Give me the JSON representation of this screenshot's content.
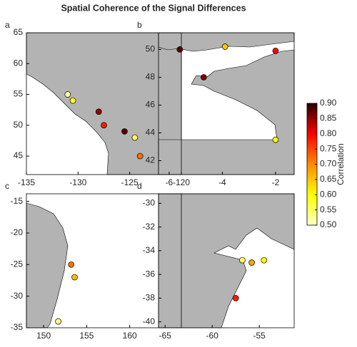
{
  "title": "Spatial Coherence of the Signal Differences",
  "chart_data": [
    {
      "type": "scatter",
      "label": "a",
      "xlim": [
        -135,
        -120
      ],
      "ylim": [
        42,
        65
      ],
      "xticks": [
        -135,
        -130,
        -125,
        -120
      ],
      "yticks": [
        45,
        50,
        55,
        60,
        65
      ],
      "x": [
        -131,
        -130.5,
        -128,
        -127.5,
        -125.5,
        -124.5,
        -124
      ],
      "y": [
        55,
        54,
        52.2,
        50,
        49,
        48,
        45
      ],
      "values": [
        0.52,
        0.58,
        0.85,
        0.78,
        0.88,
        0.55,
        0.72
      ]
    },
    {
      "type": "scatter",
      "label": "b",
      "xlim": [
        -6.4,
        -1.3
      ],
      "ylim": [
        41,
        51.2
      ],
      "xticks": [
        -6,
        -4,
        -2
      ],
      "yticks": [
        42,
        44,
        46,
        48,
        50
      ],
      "x": [
        -5.6,
        -3.9,
        -2,
        -4.7,
        -2
      ],
      "y": [
        50,
        50.2,
        49.9,
        48,
        43.5
      ],
      "values": [
        0.88,
        0.65,
        0.8,
        0.86,
        0.6
      ]
    },
    {
      "type": "scatter",
      "label": "c",
      "xlim": [
        148,
        166
      ],
      "ylim": [
        -35,
        -13.8
      ],
      "xticks": [
        150,
        155,
        160
      ],
      "yticks": [
        -35,
        -30,
        -25,
        -20,
        -15
      ],
      "x": [
        153.2,
        153.6,
        151.7
      ],
      "y": [
        -25,
        -27,
        -34
      ],
      "values": [
        0.72,
        0.66,
        0.53
      ]
    },
    {
      "type": "scatter",
      "label": "d",
      "xlim": [
        -65.7,
        -51.3
      ],
      "ylim": [
        -40.5,
        -29.2
      ],
      "xticks": [
        -65,
        -60,
        -55
      ],
      "yticks": [
        -40,
        -38,
        -36,
        -34,
        -32,
        -30
      ],
      "x": [
        -56.8,
        -55.8,
        -54.5,
        -57.5
      ],
      "y": [
        -34.8,
        -35,
        -34.8,
        -38
      ],
      "values": [
        0.55,
        0.68,
        0.6,
        0.78
      ]
    },
    {
      "type": "colorbar",
      "label": "Correlation",
      "ylim": [
        0.5,
        0.9
      ],
      "yticks": [
        {
          "value": 0.5,
          "label": "0.50"
        },
        {
          "value": 0.55,
          "label": "0.55"
        },
        {
          "value": 0.6,
          "label": "0.60"
        },
        {
          "value": 0.65,
          "label": "0.65"
        },
        {
          "value": 0.7,
          "label": "0.70"
        },
        {
          "value": 0.75,
          "label": "0.75"
        },
        {
          "value": 0.8,
          "label": "0.80"
        },
        {
          "value": 0.85,
          "label": "0.85"
        },
        {
          "value": 0.9,
          "label": "0.90"
        }
      ],
      "colormap": [
        "#ffffc8",
        "#ffff00",
        "#ff8c00",
        "#ff0000",
        "#2a0000"
      ]
    }
  ]
}
